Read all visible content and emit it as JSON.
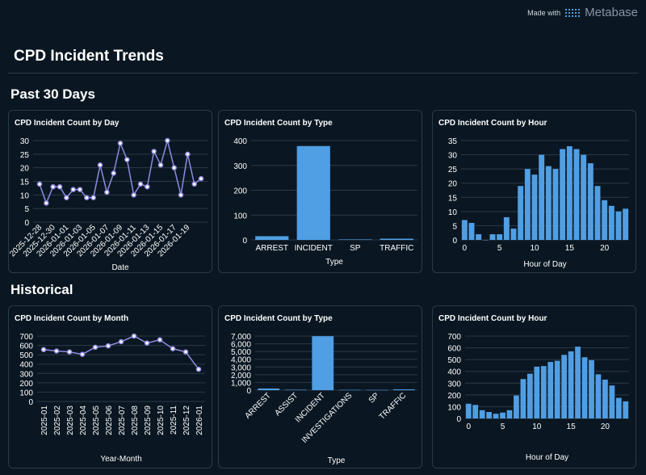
{
  "branding": {
    "made_with": "Made with",
    "brand": "Metabase"
  },
  "page_title": "CPD Incident Trends",
  "sections": [
    {
      "title": "Past 30 Days"
    },
    {
      "title": "Historical"
    }
  ],
  "colors": {
    "background": "#0a1722",
    "line": "#8f8ae0",
    "bar": "#509ee3",
    "grid": "#2c3a47"
  },
  "chart_data": [
    {
      "title": "CPD Incident Count by Day",
      "type": "line",
      "xlabel": "Date",
      "ylim": [
        0,
        30
      ],
      "yticks": [
        0,
        5,
        10,
        15,
        20,
        25,
        30
      ],
      "categories": [
        "2025-12-28",
        "2025-12-29",
        "2025-12-30",
        "2025-12-31",
        "2026-01-01",
        "2026-01-02",
        "2026-01-03",
        "2026-01-04",
        "2026-01-05",
        "2026-01-06",
        "2026-01-07",
        "2026-01-08",
        "2026-01-09",
        "2026-01-10",
        "2026-01-11",
        "2026-01-12",
        "2026-01-13",
        "2026-01-14",
        "2026-01-15",
        "2026-01-16",
        "2026-01-17",
        "2026-01-18",
        "2026-01-19",
        "2026-01-20",
        "2026-01-21"
      ],
      "xticks": [
        "2025-12-28",
        "2025-12-30",
        "2026-01-01",
        "2026-01-03",
        "2026-01-05",
        "2026-01-07",
        "2026-01-09",
        "2026-01-11",
        "2026-01-13",
        "2026-01-15",
        "2026-01-17",
        "2026-01-19"
      ],
      "values": [
        14,
        7,
        13,
        13,
        9,
        12,
        12,
        9,
        9,
        21,
        11,
        18,
        29,
        23,
        10,
        14,
        13,
        26,
        21,
        30,
        20,
        10,
        25,
        14,
        16
      ]
    },
    {
      "title": "CPD Incident Count by Type",
      "type": "bar",
      "xlabel": "Type",
      "ylim": [
        0,
        400
      ],
      "yticks": [
        0,
        100,
        200,
        300,
        400
      ],
      "categories": [
        "ARREST",
        "INCIDENT",
        "SP",
        "TRAFFIC"
      ],
      "values": [
        15,
        378,
        2,
        5
      ]
    },
    {
      "title": "CPD Incident Count by Hour",
      "type": "bar",
      "xlabel": "Hour of Day",
      "ylim": [
        0,
        35
      ],
      "yticks": [
        0,
        5,
        10,
        15,
        20,
        25,
        30,
        35
      ],
      "categories": [
        0,
        1,
        2,
        3,
        4,
        5,
        6,
        7,
        8,
        9,
        10,
        11,
        12,
        13,
        14,
        15,
        16,
        17,
        18,
        19,
        20,
        21,
        22,
        23
      ],
      "xticks": [
        0,
        5,
        10,
        15,
        20
      ],
      "values": [
        7,
        6,
        2,
        0,
        2,
        2,
        8,
        4,
        19,
        25,
        23,
        30,
        26,
        25,
        32,
        33,
        32,
        30,
        27,
        19,
        14,
        12,
        10,
        11
      ]
    },
    {
      "title": "CPD Incident Count by Month",
      "type": "line",
      "xlabel": "Year-Month",
      "ylim": [
        0,
        700
      ],
      "yticks": [
        0,
        100,
        200,
        300,
        400,
        500,
        600,
        700
      ],
      "categories": [
        "2025-01",
        "2025-02",
        "2025-03",
        "2025-04",
        "2025-05",
        "2025-06",
        "2025-07",
        "2025-08",
        "2025-09",
        "2025-10",
        "2025-11",
        "2025-12",
        "2026-01"
      ],
      "values": [
        555,
        540,
        530,
        505,
        580,
        595,
        640,
        700,
        625,
        660,
        565,
        530,
        345
      ]
    },
    {
      "title": "CPD Incident Count by Type",
      "type": "bar",
      "xlabel": "Type",
      "ylim": [
        0,
        7000
      ],
      "yticks": [
        "0",
        "1,000",
        "2,000",
        "3,000",
        "4,000",
        "5,000",
        "6,000",
        "7,000"
      ],
      "categories": [
        "ARREST",
        "ASSIST",
        "INCIDENT",
        "INVESTIGATIONS",
        "SP",
        "TRAFFIC"
      ],
      "values": [
        220,
        60,
        6980,
        40,
        30,
        110
      ]
    },
    {
      "title": "CPD Incident Count by Hour",
      "type": "bar",
      "xlabel": "Hour of Day",
      "ylim": [
        0,
        700
      ],
      "yticks": [
        0,
        100,
        200,
        300,
        400,
        500,
        600,
        700
      ],
      "categories": [
        0,
        1,
        2,
        3,
        4,
        5,
        6,
        7,
        8,
        9,
        10,
        11,
        12,
        13,
        14,
        15,
        16,
        17,
        18,
        19,
        20,
        21,
        22,
        23
      ],
      "xticks": [
        0,
        5,
        10,
        15,
        20
      ],
      "values": [
        125,
        115,
        70,
        55,
        40,
        50,
        70,
        195,
        335,
        380,
        440,
        445,
        480,
        490,
        540,
        570,
        610,
        520,
        495,
        375,
        330,
        280,
        175,
        145
      ]
    }
  ]
}
